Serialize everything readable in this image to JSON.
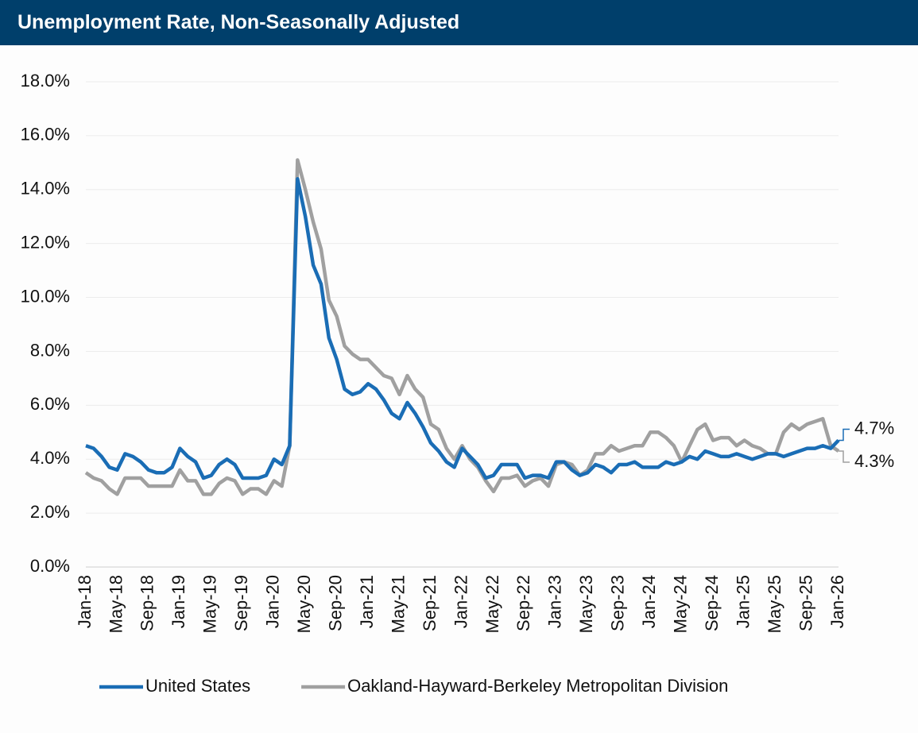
{
  "chart_data": {
    "type": "line",
    "title": "Unemployment Rate, Non-Seasonally Adjusted",
    "categories": [
      "Jan-18",
      null,
      null,
      null,
      "May-18",
      null,
      null,
      null,
      "Sep-18",
      null,
      null,
      null,
      "Jan-19",
      null,
      null,
      null,
      "May-19",
      null,
      null,
      null,
      "Sep-19",
      null,
      null,
      null,
      "Jan-20",
      null,
      null,
      null,
      "May-20",
      null,
      null,
      null,
      "Sep-20",
      null,
      null,
      null,
      "Jan-21",
      null,
      null,
      null,
      "May-21",
      null,
      null,
      null,
      "Sep-21",
      null,
      null,
      null,
      "Jan-22",
      null,
      null,
      null,
      "May-22",
      null,
      null,
      null,
      "Sep-22",
      null,
      null,
      null,
      "Jan-23",
      null,
      null,
      null,
      "May-23",
      null,
      null,
      null,
      "Sep-23",
      null,
      null,
      null,
      "Jan-24",
      null,
      null,
      null,
      "May-24",
      null,
      null,
      null,
      "Sep-24",
      null,
      null,
      null,
      "Jan-25",
      null,
      null,
      null,
      "May-25",
      null,
      null,
      null,
      "Sep-25",
      null,
      null,
      null,
      "Jan-26"
    ],
    "series": [
      {
        "name": "United States",
        "color": "#1a6db5",
        "values": [
          4.5,
          4.4,
          4.1,
          3.7,
          3.6,
          4.2,
          4.1,
          3.9,
          3.6,
          3.5,
          3.5,
          3.7,
          4.4,
          4.1,
          3.9,
          3.3,
          3.4,
          3.8,
          4.0,
          3.8,
          3.3,
          3.3,
          3.3,
          3.4,
          4.0,
          3.8,
          4.5,
          14.4,
          13.0,
          11.2,
          10.5,
          8.5,
          7.7,
          6.6,
          6.4,
          6.5,
          6.8,
          6.6,
          6.2,
          5.7,
          5.5,
          6.1,
          5.7,
          5.2,
          4.6,
          4.3,
          3.9,
          3.7,
          4.4,
          4.1,
          3.8,
          3.3,
          3.4,
          3.8,
          3.8,
          3.8,
          3.3,
          3.4,
          3.4,
          3.3,
          3.9,
          3.9,
          3.6,
          3.4,
          3.5,
          3.8,
          3.7,
          3.5,
          3.8,
          3.8,
          3.9,
          3.7,
          3.7,
          3.7,
          3.9,
          3.8,
          3.9,
          4.1,
          4.0,
          4.3,
          4.2,
          4.1,
          4.1,
          4.2,
          4.1,
          4.0,
          4.1,
          4.2,
          4.2,
          4.1,
          4.2,
          4.3,
          4.4,
          4.4,
          4.5,
          4.4,
          4.7
        ],
        "value_labels": [
          null,
          null,
          null,
          null,
          null,
          null,
          null,
          null,
          null,
          null,
          null,
          null,
          null,
          null,
          null,
          null,
          null,
          null,
          null,
          null,
          null,
          null,
          null,
          null,
          null,
          null,
          null,
          null,
          null,
          null,
          null,
          null,
          null,
          null,
          null,
          null,
          null,
          null,
          null,
          null,
          null,
          null,
          null,
          null,
          null,
          null,
          null,
          null,
          null,
          null,
          null,
          null,
          null,
          null,
          null,
          null,
          null,
          null,
          null,
          null,
          null,
          null,
          null,
          null,
          null,
          null,
          null,
          null,
          null,
          null,
          null,
          null,
          null,
          null,
          null,
          null,
          null,
          null,
          null,
          null,
          null,
          null,
          null,
          null,
          null,
          null,
          null,
          null,
          null,
          null,
          null,
          null,
          null,
          null,
          null,
          null,
          "4.7%"
        ]
      },
      {
        "name": "Oakland-Hayward-Berkeley Metropolitan Division",
        "color": "#a0a0a0",
        "values": [
          3.5,
          3.3,
          3.2,
          2.9,
          2.7,
          3.3,
          3.3,
          3.3,
          3.0,
          3.0,
          3.0,
          3.0,
          3.6,
          3.2,
          3.2,
          2.7,
          2.7,
          3.1,
          3.3,
          3.2,
          2.7,
          2.9,
          2.9,
          2.7,
          3.2,
          3.0,
          4.5,
          15.1,
          14.0,
          12.8,
          11.8,
          9.9,
          9.3,
          8.2,
          7.9,
          7.7,
          7.7,
          7.4,
          7.1,
          7.0,
          6.4,
          7.1,
          6.6,
          6.3,
          5.3,
          5.1,
          4.4,
          4.0,
          4.5,
          4.0,
          3.7,
          3.2,
          2.8,
          3.3,
          3.3,
          3.4,
          3.0,
          3.2,
          3.3,
          3.0,
          3.8,
          3.9,
          3.8,
          3.4,
          3.6,
          4.2,
          4.2,
          4.5,
          4.3,
          4.4,
          4.5,
          4.5,
          5.0,
          5.0,
          4.8,
          4.5,
          3.9,
          4.5,
          5.1,
          5.3,
          4.7,
          4.8,
          4.8,
          4.5,
          4.7,
          4.5,
          4.4,
          4.2,
          4.2,
          5.0,
          5.3,
          5.1,
          5.3,
          5.4,
          5.5,
          4.5,
          4.3
        ],
        "value_labels": [
          null,
          null,
          null,
          null,
          null,
          null,
          null,
          null,
          null,
          null,
          null,
          null,
          null,
          null,
          null,
          null,
          null,
          null,
          null,
          null,
          null,
          null,
          null,
          null,
          null,
          null,
          null,
          null,
          null,
          null,
          null,
          null,
          null,
          null,
          null,
          null,
          null,
          null,
          null,
          null,
          null,
          null,
          null,
          null,
          null,
          null,
          null,
          null,
          null,
          null,
          null,
          null,
          null,
          null,
          null,
          null,
          null,
          null,
          null,
          null,
          null,
          null,
          null,
          null,
          null,
          null,
          null,
          null,
          null,
          null,
          null,
          null,
          null,
          null,
          null,
          null,
          null,
          null,
          null,
          null,
          null,
          null,
          null,
          null,
          null,
          null,
          null,
          null,
          null,
          null,
          null,
          null,
          null,
          null,
          null,
          null,
          "4.3%"
        ]
      }
    ],
    "ylim": [
      0,
      18
    ],
    "yticks": [
      {
        "value": 0,
        "label": "0.0%"
      },
      {
        "value": 2,
        "label": "2.0%"
      },
      {
        "value": 4,
        "label": "4.0%"
      },
      {
        "value": 6,
        "label": "6.0%"
      },
      {
        "value": 8,
        "label": "8.0%"
      },
      {
        "value": 10,
        "label": "10.0%"
      },
      {
        "value": 12,
        "label": "12.0%"
      },
      {
        "value": 14,
        "label": "14.0%"
      },
      {
        "value": 16,
        "label": "16.0%"
      },
      {
        "value": 18,
        "label": "18.0%"
      }
    ],
    "grid": true,
    "legend": "bottom"
  }
}
